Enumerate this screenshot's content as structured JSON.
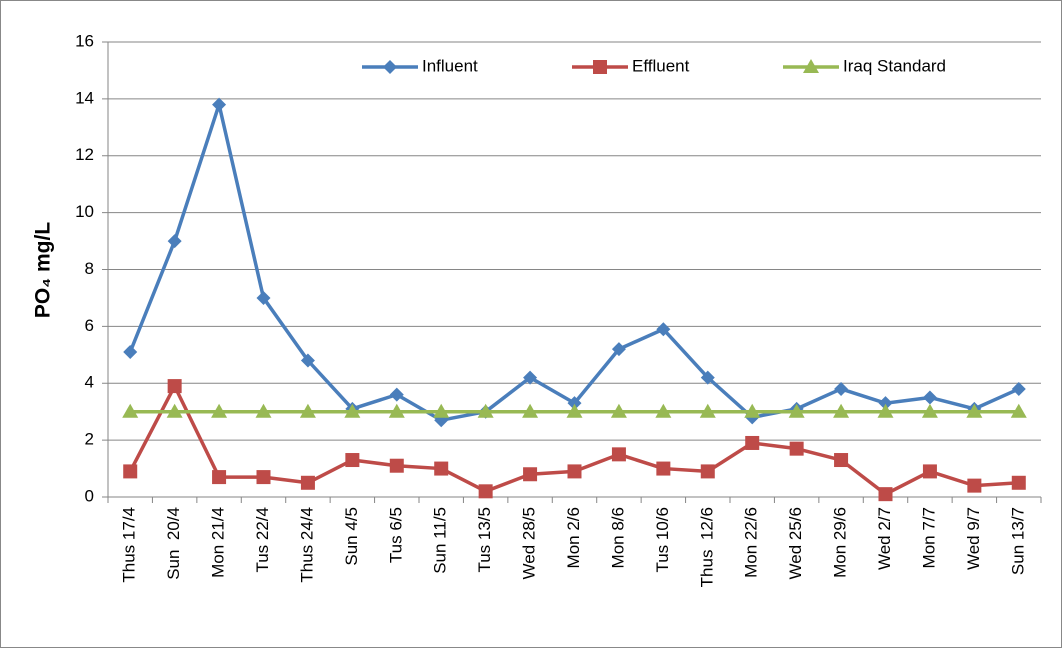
{
  "chart_data": {
    "type": "line",
    "y_label": "PO₄ mg/L",
    "categories": [
      "Thus 17/4",
      "Sun  20/4",
      "Mon 21/4",
      "Tus 22/4",
      "Thus 24/4",
      "Sun 4/5",
      "Tus 6/5",
      "Sun 11/5",
      "Tus 13/5",
      "Wed 28/5",
      "Mon 2/6",
      "Mon 8/6",
      "Tus 10/6",
      "Thus  12/6",
      "Mon 22/6",
      "Wed 25/6",
      "Mon 29/6",
      "Wed 2/7",
      "Mon 7/7",
      "Wed 9/7",
      "Sun 13/7"
    ],
    "series": [
      {
        "name": "Influent",
        "color": "#4a7ebb",
        "marker": "diamond",
        "values": [
          5.1,
          9.0,
          13.8,
          7.0,
          4.8,
          3.1,
          3.6,
          2.7,
          3.0,
          4.2,
          3.3,
          5.2,
          5.9,
          4.2,
          2.8,
          3.1,
          3.8,
          3.3,
          3.5,
          3.1,
          3.8
        ]
      },
      {
        "name": "Effluent",
        "color": "#be4b48",
        "marker": "square",
        "values": [
          0.9,
          3.9,
          0.7,
          0.7,
          0.5,
          1.3,
          1.1,
          1.0,
          0.2,
          0.8,
          0.9,
          1.5,
          1.0,
          0.9,
          1.9,
          1.7,
          1.3,
          0.1,
          0.9,
          0.4,
          0.5
        ]
      },
      {
        "name": "Iraq Standard",
        "color": "#98b954",
        "marker": "triangle",
        "values": [
          3,
          3,
          3,
          3,
          3,
          3,
          3,
          3,
          3,
          3,
          3,
          3,
          3,
          3,
          3,
          3,
          3,
          3,
          3,
          3,
          3
        ]
      }
    ],
    "ylim": [
      0,
      16
    ],
    "yticks": [
      0,
      2,
      4,
      6,
      8,
      10,
      12,
      14,
      16
    ],
    "grid": true,
    "legend": "top"
  }
}
